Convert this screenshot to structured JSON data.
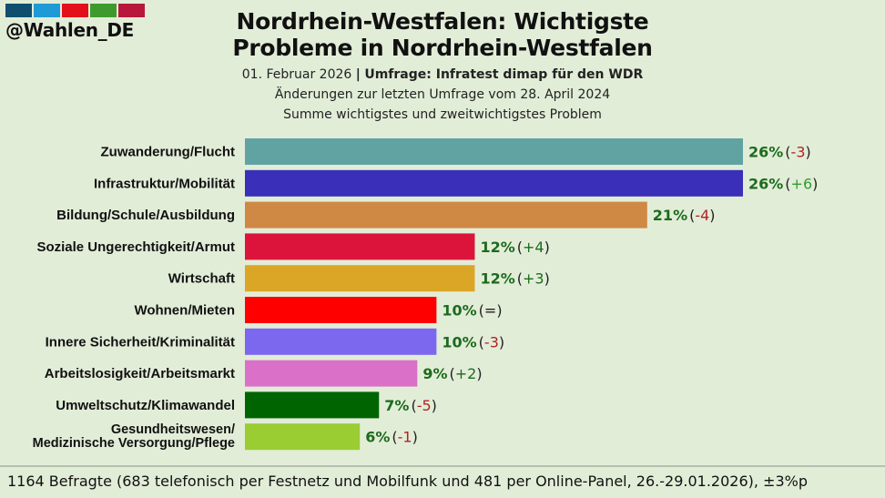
{
  "logo": {
    "text": "@Wahlen_DE",
    "colors": [
      "#0f4e6e",
      "#1e9ad6",
      "#e3101b",
      "#3f9a2d",
      "#b8173b"
    ]
  },
  "header": {
    "title_line1": "Nordrhein-Westfalen: Wichtigste",
    "title_line2": "Probleme in Nordrhein-Westfalen",
    "date": "01. Februar 2026",
    "separator": "|",
    "source": "Umfrage: Infratest dimap für den WDR",
    "changes_note": "Änderungen zur letzten Umfrage vom 28. April 2024",
    "sum_note": "Summe wichtigstes und zweitwichtigstes Problem"
  },
  "footer": {
    "text": "1164 Befragte (683 telefonisch per Festnetz und Mobilfunk und 481 per Online-Panel, 26.-29.01.2026), ±3%p"
  },
  "colors": {
    "value_text": "#1c6b1c",
    "positive_change": "#2f9e2f",
    "negative_change": "#b02424",
    "neutral_change": "#222222",
    "bracket": "#222222"
  },
  "chart_data": {
    "type": "bar",
    "orientation": "horizontal",
    "title": "Nordrhein-Westfalen: Wichtigste Probleme in Nordrhein-Westfalen",
    "xlabel": "",
    "ylabel": "",
    "xlim": [
      0,
      26
    ],
    "grid": false,
    "unit": "%",
    "categories": [
      "Zuwanderung/Flucht",
      "Infrastruktur/Mobilität",
      "Bildung/Schule/Ausbildung",
      "Soziale Ungerechtigkeit/Armut",
      "Wirtschaft",
      "Wohnen/Mieten",
      "Innere Sicherheit/Kriminalität",
      "Arbeitslosigkeit/Arbeitsmarkt",
      "Umweltschutz/Klimawandel",
      "Gesundheitswesen/\nMedizinische Versorgung/Pflege"
    ],
    "values": [
      26,
      26,
      21,
      12,
      12,
      10,
      10,
      9,
      7,
      6
    ],
    "changes": [
      "-3",
      "+6",
      "-4",
      "+4",
      "+3",
      "=",
      "-3",
      "+2",
      "-5",
      "-1"
    ],
    "change_tone": [
      "neg",
      "pos",
      "neg",
      "pos-dark",
      "pos-dark",
      "neutral",
      "neg",
      "pos-dark",
      "neg",
      "neg"
    ],
    "bar_colors": [
      "#61a3a3",
      "#3a2fb8",
      "#d08845",
      "#dc143c",
      "#dba626",
      "#ff0000",
      "#7b68ee",
      "#da70c8",
      "#006400",
      "#9acd32"
    ]
  }
}
